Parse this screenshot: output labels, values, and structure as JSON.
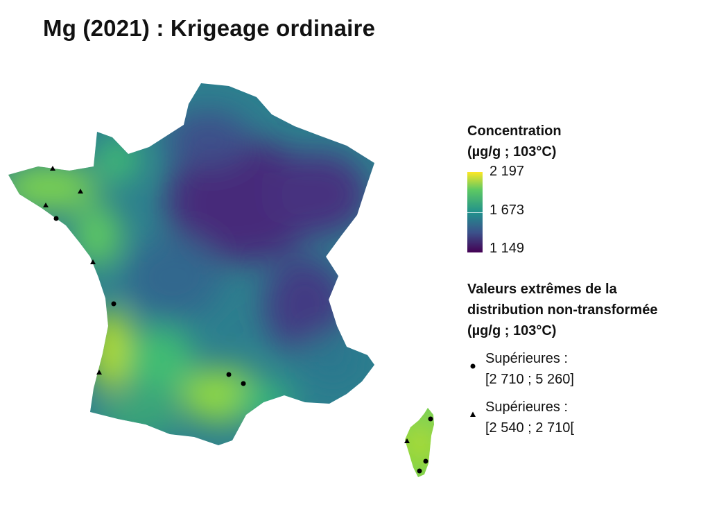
{
  "title": "Mg (2021) : Krigeage ordinaire",
  "legend": {
    "concentration": {
      "title_line1": "Concentration",
      "title_line2": "(µg/g ; 103°C)",
      "ticks": [
        "2 197",
        "1 673",
        "1 149"
      ],
      "values": [
        2197,
        1673,
        1149
      ],
      "colorscale": "viridis",
      "colors": [
        "#fde725",
        "#5ec962",
        "#21918c",
        "#3b528b",
        "#440154"
      ]
    },
    "extremes": {
      "title_line1": "Valeurs extrêmes de la",
      "title_line2": "distribution non-transformée",
      "title_line3": "(µg/g ; 103°C)",
      "items": [
        {
          "symbol": "circle",
          "label_line1": "Supérieures :",
          "label_line2": "[2 710 ; 5 260]"
        },
        {
          "symbol": "triangle",
          "label_line1": "Supérieures :",
          "label_line2": "[2 540 ; 2 710["
        }
      ]
    }
  },
  "map": {
    "region": "France",
    "variable": "Mg",
    "year": 2021,
    "symbol_color": "#000000"
  }
}
